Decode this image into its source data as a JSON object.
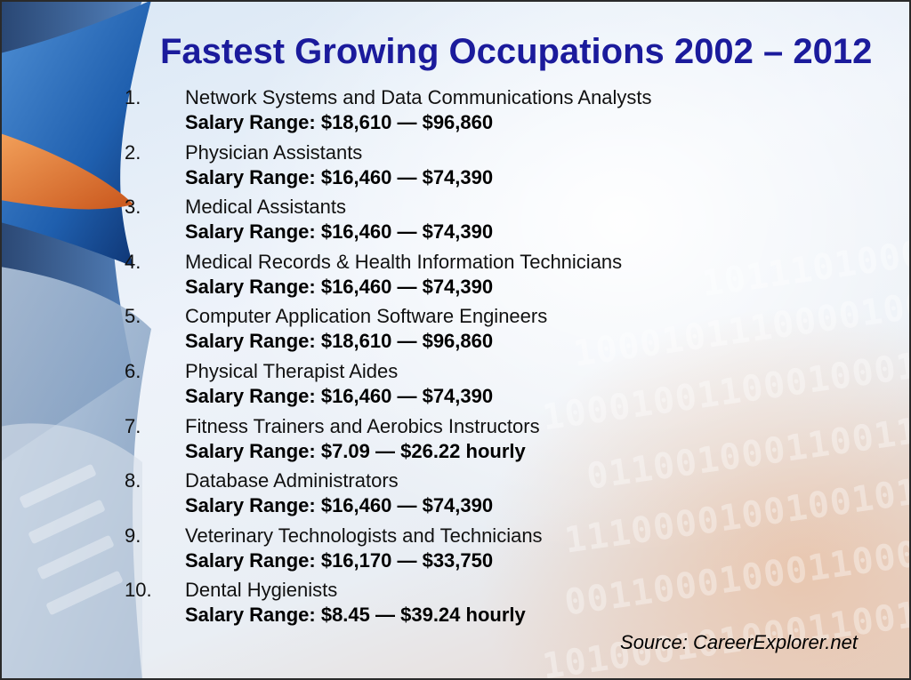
{
  "title": "Fastest Growing Occupations 2002 – 2012",
  "items": [
    {
      "num": "1.",
      "occupation": "Network Systems and Data Communications Analysts",
      "salary": "Salary Range: $18,610 — $96,860"
    },
    {
      "num": "2.",
      "occupation": "Physician Assistants",
      "salary": "Salary Range: $16,460 — $74,390"
    },
    {
      "num": "3.",
      "occupation": "Medical Assistants",
      "salary": "Salary Range: $16,460 — $74,390"
    },
    {
      "num": "4.",
      "occupation": "Medical Records & Health Information Technicians",
      "salary": "Salary Range: $16,460 — $74,390"
    },
    {
      "num": "5.",
      "occupation": "Computer Application Software Engineers",
      "salary": "Salary Range: $18,610 — $96,860"
    },
    {
      "num": "6.",
      "occupation": "Physical Therapist Aides",
      "salary": "Salary Range: $16,460 — $74,390"
    },
    {
      "num": "7.",
      "occupation": "Fitness Trainers and Aerobics Instructors",
      "salary": "Salary Range: $7.09 — $26.22 hourly"
    },
    {
      "num": "8.",
      "occupation": "Database Administrators",
      "salary": "Salary Range: $16,460 — $74,390"
    },
    {
      "num": "9.",
      "occupation": "Veterinary Technologists and Technicians",
      "salary": "Salary Range: $16,170 — $33,750"
    },
    {
      "num": "10.",
      "occupation": "Dental Hygienists",
      "salary": "Salary Range: $8.45 — $39.24 hourly"
    }
  ],
  "source": "Source: CareerExplorer.net",
  "colors": {
    "title": "#1b1b9c",
    "swoosh_blue": "#1f5fae",
    "swoosh_orange": "#e0752a"
  }
}
